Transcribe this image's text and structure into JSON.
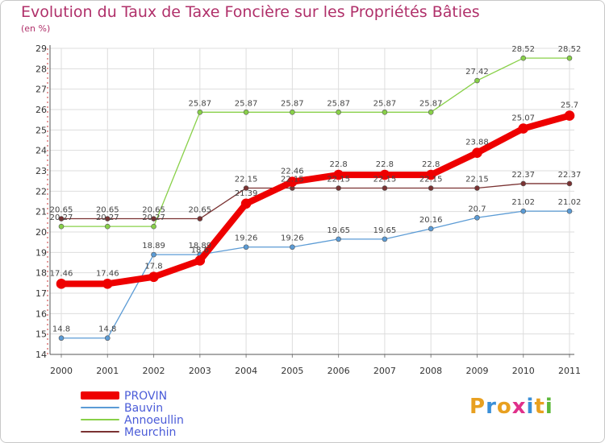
{
  "title": "Evolution du Taux de Taxe Foncière sur les Propriétés Bâties",
  "unit_label": "(en %)",
  "logo": {
    "text": "Proxiti",
    "colors": [
      "#e8a020",
      "#3a8fd8",
      "#e8a020",
      "#e0308a",
      "#3a8fd8",
      "#e8a020",
      "#5cb83a"
    ]
  },
  "chart_data": {
    "type": "line",
    "title": "Evolution du Taux de Taxe Foncière sur les Propriétés Bâties",
    "ylabel": "(en %)",
    "xlabel": "",
    "x": [
      "2000",
      "2001",
      "2002",
      "2003",
      "2004",
      "2005",
      "2006",
      "2007",
      "2008",
      "2009",
      "2010",
      "2011"
    ],
    "ylim": [
      14,
      29
    ],
    "yticks": [
      14,
      15,
      16,
      17,
      18,
      19,
      20,
      21,
      22,
      23,
      24,
      25,
      26,
      27,
      28,
      29
    ],
    "legend_position": "bottom-left",
    "series": [
      {
        "name": "Annoeullin",
        "color": "#88d048",
        "values": [
          20.27,
          20.27,
          20.27,
          25.87,
          25.87,
          25.87,
          25.87,
          25.87,
          25.87,
          27.42,
          28.52,
          28.52
        ],
        "labels": [
          "20.27",
          "20.27",
          "20.27",
          "25.87",
          "25.87",
          "25.87",
          "25.87",
          "25.87",
          "25.87",
          "27.42",
          "28.52",
          "28.52"
        ]
      },
      {
        "name": "Meurchin",
        "color": "#7a3232",
        "values": [
          20.65,
          20.65,
          20.65,
          20.65,
          22.15,
          22.15,
          22.15,
          22.15,
          22.15,
          22.15,
          22.37,
          22.37
        ],
        "labels": [
          "20.65",
          "20.65",
          "20.65",
          "20.65",
          "22.15",
          "22.15",
          "22.15",
          "22.15",
          "22.15",
          "22.15",
          "22.37",
          "22.37"
        ]
      },
      {
        "name": "Bauvin",
        "color": "#5b9bd5",
        "values": [
          14.8,
          14.8,
          18.89,
          18.89,
          19.26,
          19.26,
          19.65,
          19.65,
          20.16,
          20.7,
          21.02,
          21.02
        ],
        "labels": [
          "14.8",
          "14.8",
          "18.89",
          "18.89",
          "19.26",
          "19.26",
          "19.65",
          "19.65",
          "20.16",
          "20.7",
          "21.02",
          "21.02"
        ]
      },
      {
        "name": "PROVIN",
        "color": "#ee0000",
        "values": [
          17.46,
          17.46,
          17.8,
          18.6,
          21.39,
          22.46,
          22.8,
          22.8,
          22.8,
          23.88,
          25.07,
          25.7
        ],
        "labels": [
          "17.46",
          "17.46",
          "17.8",
          "18.6",
          "21.39",
          "22.46",
          "22.8",
          "22.8",
          "22.8",
          "23.88",
          "25.07",
          "25.7"
        ]
      }
    ]
  },
  "legend": [
    {
      "name": "PROVIN",
      "color": "#ee0000"
    },
    {
      "name": "Bauvin",
      "color": "#5b9bd5"
    },
    {
      "name": "Annoeullin",
      "color": "#88d048"
    },
    {
      "name": "Meurchin",
      "color": "#7a3232"
    }
  ]
}
